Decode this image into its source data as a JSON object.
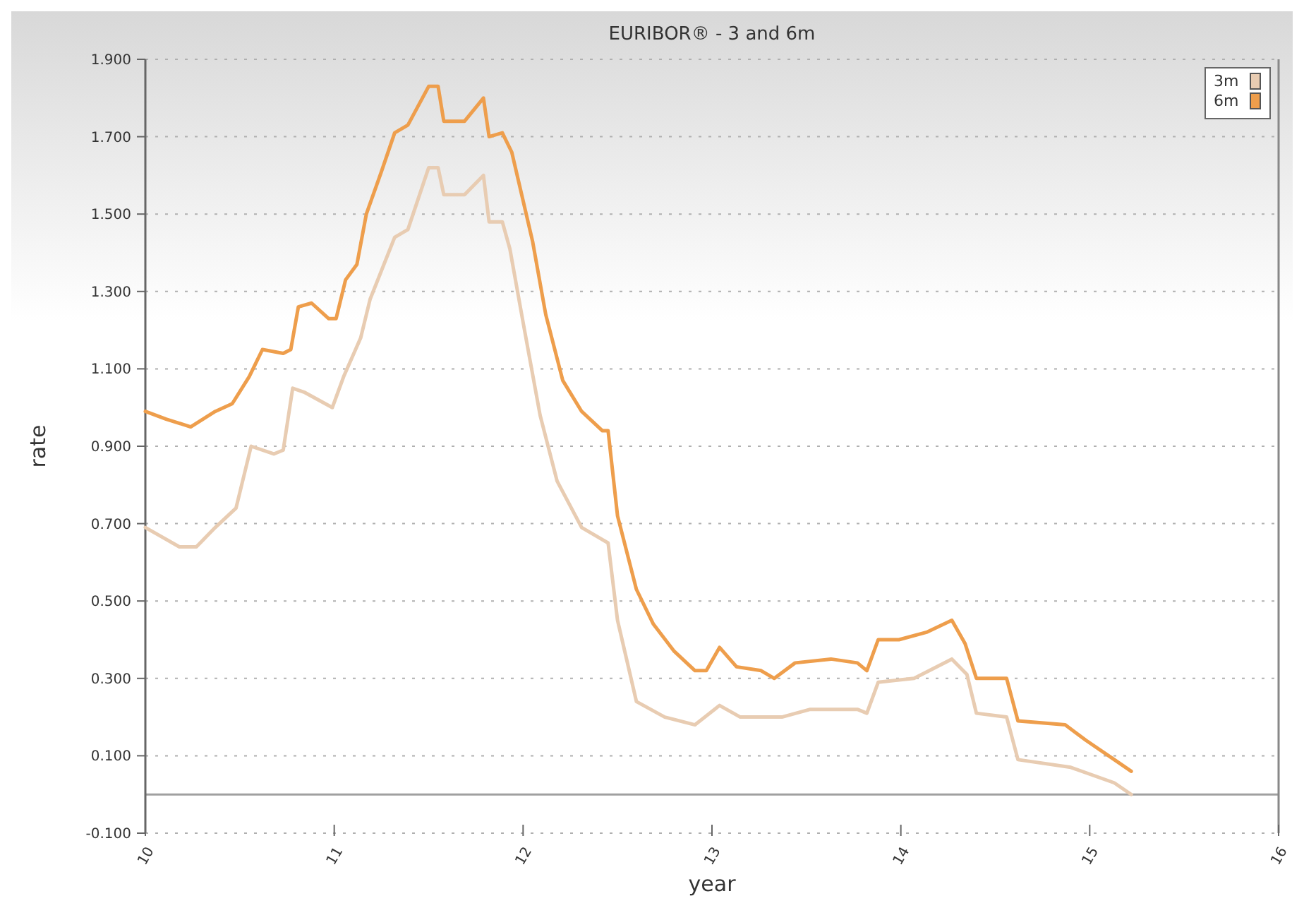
{
  "chart_data": {
    "type": "line",
    "title": "EURIBOR® - 3 and 6m",
    "xlabel": "year",
    "ylabel": "rate",
    "xlim": [
      10,
      16
    ],
    "xticks": [
      10,
      11,
      12,
      13,
      14,
      15,
      16
    ],
    "ylim": [
      -0.1,
      1.9
    ],
    "yticks": [
      {
        "value": -0.1,
        "label": "-0.100"
      },
      {
        "value": 0.1,
        "label": "0.100"
      },
      {
        "value": 0.3,
        "label": "0.300"
      },
      {
        "value": 0.5,
        "label": "0.500"
      },
      {
        "value": 0.7,
        "label": "0.700"
      },
      {
        "value": 0.9,
        "label": "0.900"
      },
      {
        "value": 1.1,
        "label": "1.100"
      },
      {
        "value": 1.3,
        "label": "1.300"
      },
      {
        "value": 1.5,
        "label": "1.500"
      },
      {
        "value": 1.7,
        "label": "1.700"
      },
      {
        "value": 1.9,
        "label": "1.900"
      }
    ],
    "grid": "y",
    "legend": "top right",
    "line_style": "solid",
    "marker": "none",
    "ref_lines": [
      {
        "axis": "y",
        "value": 0,
        "color": "#a0a0a0"
      }
    ],
    "series": [
      {
        "name": "3m",
        "color": "#e8ccb2",
        "x": [
          10.0,
          10.18,
          10.27,
          10.37,
          10.48,
          10.56,
          10.68,
          10.73,
          10.78,
          10.84,
          10.99,
          11.05,
          11.14,
          11.19,
          11.32,
          11.39,
          11.5,
          11.55,
          11.58,
          11.69,
          11.79,
          11.82,
          11.89,
          11.93,
          12.0,
          12.09,
          12.18,
          12.31,
          12.45,
          12.5,
          12.6,
          12.75,
          12.91,
          13.04,
          13.15,
          13.37,
          13.52,
          13.77,
          13.82,
          13.88,
          14.07,
          14.27,
          14.35,
          14.4,
          14.56,
          14.62,
          14.9,
          15.13,
          15.22
        ],
        "values": [
          0.69,
          0.64,
          0.64,
          0.69,
          0.74,
          0.9,
          0.88,
          0.89,
          1.05,
          1.04,
          1.0,
          1.08,
          1.18,
          1.28,
          1.44,
          1.46,
          1.62,
          1.62,
          1.55,
          1.55,
          1.6,
          1.48,
          1.48,
          1.41,
          1.22,
          0.98,
          0.81,
          0.69,
          0.65,
          0.45,
          0.24,
          0.2,
          0.18,
          0.23,
          0.2,
          0.2,
          0.22,
          0.22,
          0.21,
          0.29,
          0.3,
          0.35,
          0.31,
          0.21,
          0.2,
          0.09,
          0.07,
          0.03,
          0.0
        ]
      },
      {
        "name": "6m",
        "color": "#ee9e4c",
        "x": [
          10.0,
          10.11,
          10.24,
          10.37,
          10.46,
          10.55,
          10.62,
          10.73,
          10.77,
          10.81,
          10.88,
          10.97,
          11.01,
          11.06,
          11.12,
          11.17,
          11.25,
          11.32,
          11.39,
          11.5,
          11.55,
          11.58,
          11.69,
          11.79,
          11.82,
          11.89,
          11.94,
          12.05,
          12.12,
          12.21,
          12.31,
          12.42,
          12.45,
          12.5,
          12.6,
          12.69,
          12.8,
          12.91,
          12.97,
          13.04,
          13.13,
          13.26,
          13.33,
          13.44,
          13.63,
          13.77,
          13.82,
          13.88,
          13.99,
          14.14,
          14.27,
          14.34,
          14.4,
          14.56,
          14.62,
          14.87,
          14.98,
          15.13,
          15.22
        ],
        "values": [
          0.99,
          0.97,
          0.95,
          0.99,
          1.01,
          1.08,
          1.15,
          1.14,
          1.15,
          1.26,
          1.27,
          1.23,
          1.23,
          1.33,
          1.37,
          1.5,
          1.61,
          1.71,
          1.73,
          1.83,
          1.83,
          1.74,
          1.74,
          1.8,
          1.7,
          1.71,
          1.66,
          1.43,
          1.24,
          1.07,
          0.99,
          0.94,
          0.94,
          0.72,
          0.53,
          0.44,
          0.37,
          0.32,
          0.32,
          0.38,
          0.33,
          0.32,
          0.3,
          0.34,
          0.35,
          0.34,
          0.32,
          0.4,
          0.4,
          0.42,
          0.45,
          0.39,
          0.3,
          0.3,
          0.19,
          0.18,
          0.14,
          0.09,
          0.06
        ]
      }
    ]
  }
}
